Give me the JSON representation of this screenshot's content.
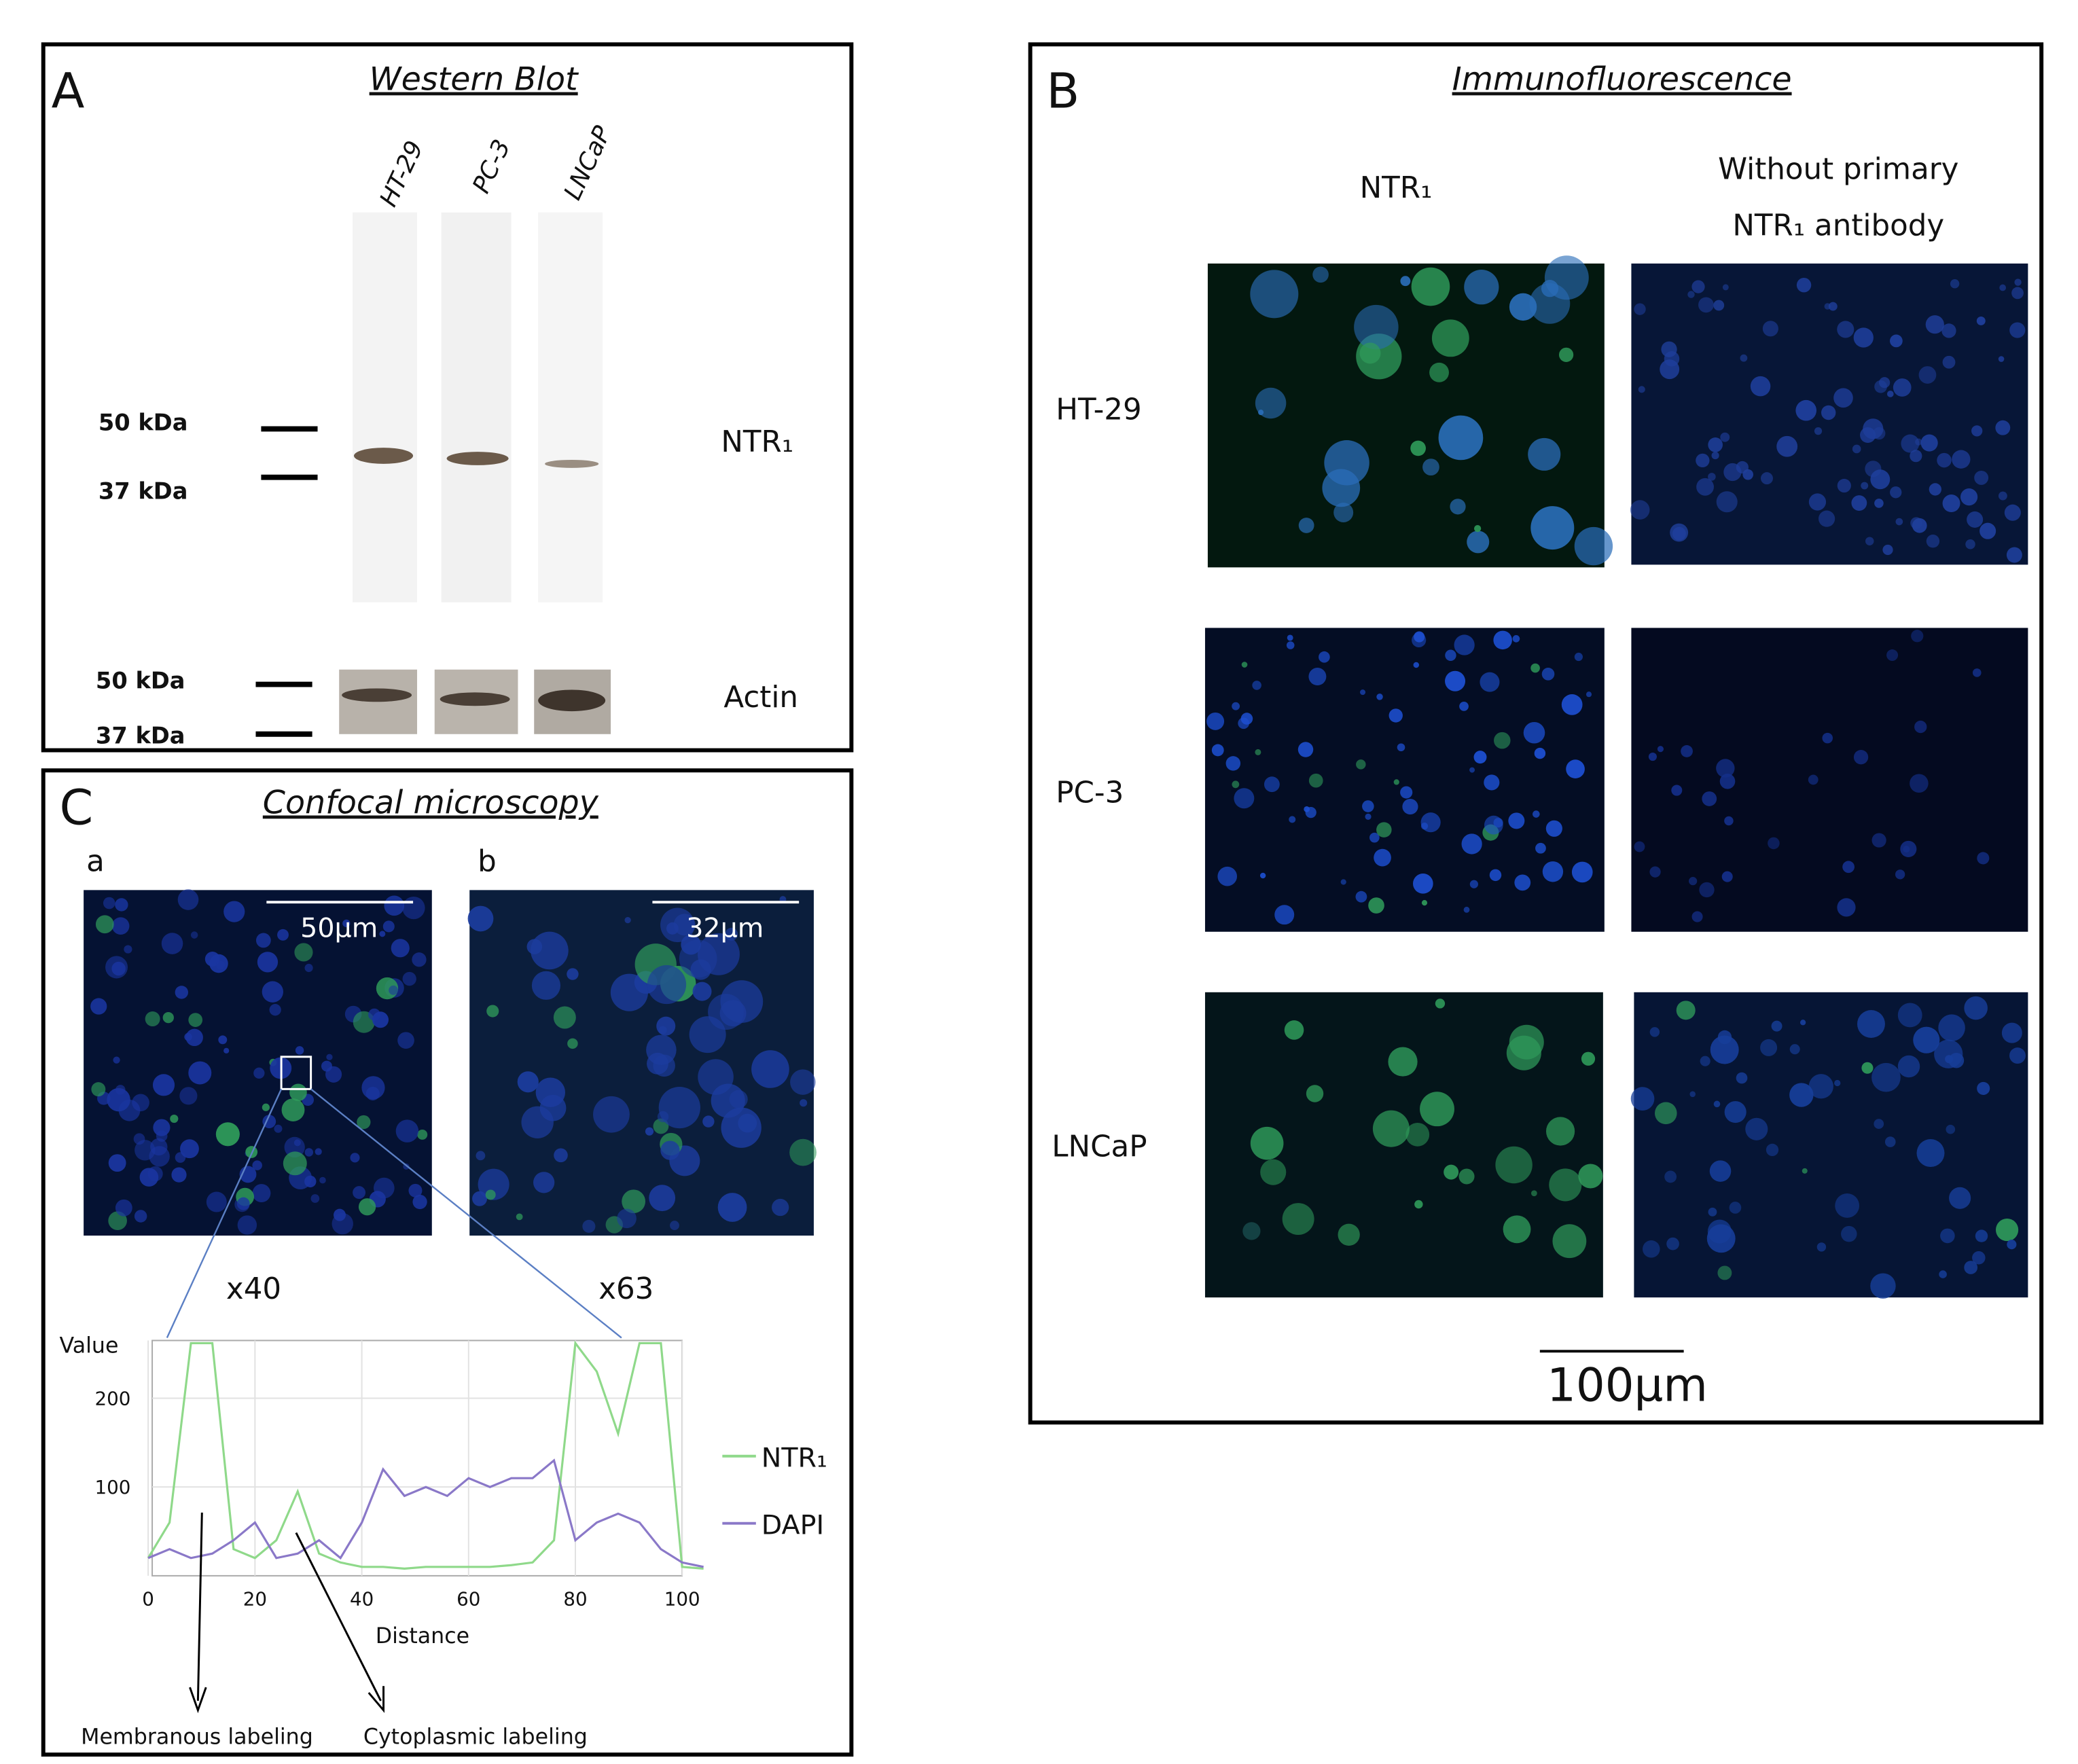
{
  "panel_a": {
    "letter": "A",
    "title": "Western Blot",
    "lanes": [
      "HT-29",
      "PC-3",
      "LNCaP"
    ],
    "markers_top": [
      "50 kDa",
      "37 kDa"
    ],
    "markers_bottom": [
      "50 kDa",
      "37 kDa"
    ],
    "band_labels": [
      "NTR₁",
      "Actin"
    ]
  },
  "panel_b": {
    "letter": "B",
    "title": "Immunofluorescence",
    "column_1": "NTR₁",
    "column_2": [
      "Without primary",
      "NTR₁ antibody"
    ],
    "rows": [
      "HT-29",
      "PC-3",
      "LNCaP"
    ],
    "scale_bar": "100µm"
  },
  "panel_c": {
    "letter": "C",
    "title": "Confocal microscopy",
    "images": [
      {
        "label": "a",
        "scale_bar": "50µm",
        "magnification": "x40"
      },
      {
        "label": "b",
        "scale_bar": "32µm",
        "magnification": "x63"
      }
    ],
    "annotations": [
      "Membranous labeling",
      "Cytoplasmic labeling"
    ]
  },
  "chart_data": {
    "type": "line",
    "y_label": "Value",
    "x_label": "Distance",
    "x": [
      0,
      4,
      8,
      12,
      16,
      20,
      24,
      28,
      32,
      36,
      40,
      44,
      48,
      52,
      56,
      60,
      64,
      68,
      72,
      76,
      80,
      84,
      88,
      92,
      96,
      100,
      104
    ],
    "series": [
      {
        "name": "NTR₁",
        "color": "#8fd98a",
        "values": [
          20,
          60,
          262,
          262,
          30,
          20,
          40,
          95,
          25,
          15,
          10,
          10,
          8,
          10,
          10,
          10,
          10,
          12,
          15,
          40,
          262,
          230,
          160,
          262,
          262,
          10,
          8
        ]
      },
      {
        "name": "DAPI",
        "color": "#8a78c8",
        "values": [
          20,
          30,
          20,
          25,
          40,
          60,
          20,
          25,
          40,
          20,
          60,
          120,
          90,
          100,
          90,
          110,
          100,
          110,
          110,
          130,
          40,
          60,
          70,
          60,
          30,
          15,
          10
        ]
      }
    ],
    "xlim": [
      0,
      105
    ],
    "ylim": [
      0,
      265
    ],
    "xticks": [
      0,
      20,
      40,
      60,
      80,
      100
    ],
    "yticks": [
      100,
      200
    ]
  }
}
